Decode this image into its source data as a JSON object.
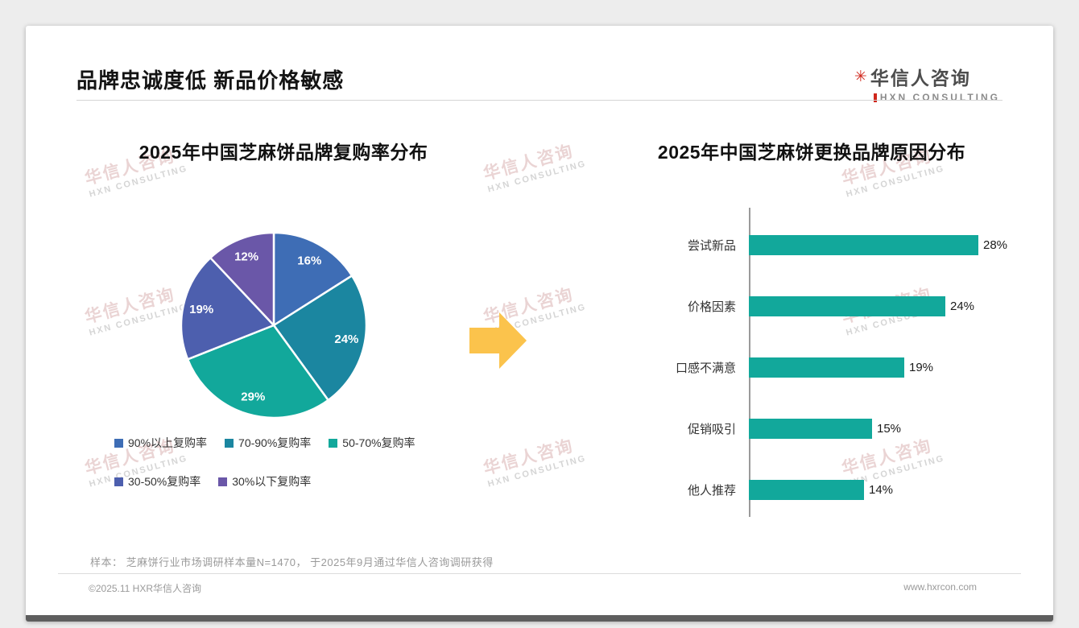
{
  "header": {
    "title": "品牌忠诚度低 新品价格敏感"
  },
  "logo": {
    "cn": "华信人咨询",
    "en": "HXN CONSULTING",
    "icon": "asterisk-icon",
    "accent_color": "#d0271c"
  },
  "watermark": {
    "cn": "华信人咨询",
    "en": "HXN CONSULTING"
  },
  "arrow": {
    "name": "right-arrow",
    "color": "#FBC34C"
  },
  "chart_data": [
    {
      "type": "pie",
      "title": "2025年中国芝麻饼品牌复购率分布",
      "labels": [
        "90%以上复购率",
        "70-90%复购率",
        "50-70%复购率",
        "30-50%复购率",
        "30%以下复购率"
      ],
      "values": [
        16,
        24,
        29,
        19,
        12
      ],
      "value_labels": [
        "16%",
        "24%",
        "29%",
        "19%",
        "12%"
      ],
      "colors": [
        "#3E6DB5",
        "#1B86A0",
        "#12A89B",
        "#4D5FAE",
        "#6A57A8"
      ],
      "legend_position": "bottom",
      "legend_rows": [
        [
          0,
          1,
          2
        ],
        [
          3,
          4
        ]
      ]
    },
    {
      "type": "bar",
      "orientation": "horizontal",
      "title": "2025年中国芝麻饼更换品牌原因分布",
      "categories": [
        "尝试新品",
        "价格因素",
        "口感不满意",
        "促销吸引",
        "他人推荐"
      ],
      "values": [
        28,
        24,
        19,
        15,
        14
      ],
      "value_labels": [
        "28%",
        "24%",
        "19%",
        "15%",
        "14%"
      ],
      "bar_color": "#12A89B",
      "xlim": [
        0,
        30
      ],
      "grid": false,
      "legend": false
    }
  ],
  "footnote": "样本： 芝麻饼行业市场调研样本量N=1470， 于2025年9月通过华信人咨询调研获得",
  "footer": {
    "left": "©2025.11 HXR华信人咨询",
    "right": "www.hxrcon.com"
  }
}
